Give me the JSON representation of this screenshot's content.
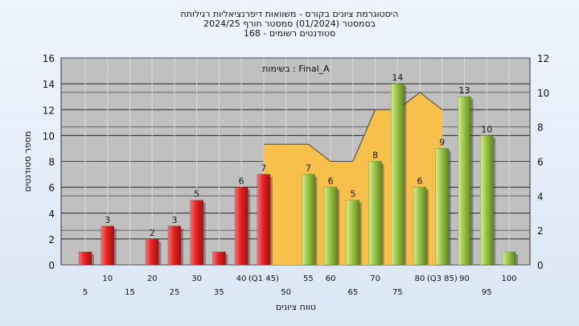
{
  "header": {
    "title_lines": [
      "היסטוגרמת ציונים בקורס - משוואות דיפרנציאליות רגילותח",
      "בסמסטר  (01/2024)  סמסטר חורף 2024/25",
      "סטודנטים רשומים - 168"
    ]
  },
  "chart_data": {
    "type": "bar",
    "title": "היסטוגרמת ציונים בקורס - משוואות דיפרנציאליות רגילותח",
    "xlabel": "טווח ציונים",
    "ylabel": "מספר סטודנטים",
    "annotation": "בשימות : Final_A",
    "ylim": [
      0,
      16
    ],
    "y2lim": [
      0,
      12
    ],
    "y_ticks": [
      0,
      2,
      4,
      6,
      8,
      10,
      12,
      14,
      16
    ],
    "y2_ticks": [
      0,
      2,
      4,
      6,
      8,
      10,
      12
    ],
    "grid": true,
    "x_ticks_upper": [
      "10",
      "20",
      "30",
      "40",
      "(Q1 45)",
      "55",
      "60",
      "70",
      "80",
      "(Q3 85)",
      "90",
      "100"
    ],
    "x_ticks_lower": [
      "5",
      "15",
      "25",
      "35",
      "50",
      "65",
      "75",
      "95"
    ],
    "bars": [
      {
        "x": 5,
        "value": 1,
        "label": "",
        "color": "#d42020"
      },
      {
        "x": 10,
        "value": 3,
        "label": "3",
        "color": "#d42020"
      },
      {
        "x": 20,
        "value": 2,
        "label": "2",
        "color": "#d42020"
      },
      {
        "x": 25,
        "value": 3,
        "label": "3",
        "color": "#d42020"
      },
      {
        "x": 30,
        "value": 5,
        "label": "5",
        "color": "#d42020"
      },
      {
        "x": 35,
        "value": 1,
        "label": "",
        "color": "#d42020"
      },
      {
        "x": 40,
        "value": 6,
        "label": "6",
        "color": "#d42020"
      },
      {
        "x": 45,
        "value": 7,
        "label": "7",
        "color": "#d42020"
      },
      {
        "x": 55,
        "value": 7,
        "label": "7",
        "color": "#86b03a"
      },
      {
        "x": 60,
        "value": 6,
        "label": "6",
        "color": "#86b03a"
      },
      {
        "x": 65,
        "value": 5,
        "label": "5",
        "color": "#86b03a"
      },
      {
        "x": 70,
        "value": 8,
        "label": "8",
        "color": "#86b03a"
      },
      {
        "x": 75,
        "value": 14,
        "label": "14",
        "color": "#86b03a"
      },
      {
        "x": 80,
        "value": 6,
        "label": "6",
        "color": "#86b03a"
      },
      {
        "x": 85,
        "value": 9,
        "label": "9",
        "color": "#86b03a"
      },
      {
        "x": 90,
        "value": 13,
        "label": "13",
        "color": "#86b03a"
      },
      {
        "x": 95,
        "value": 10,
        "label": "10",
        "color": "#86b03a"
      },
      {
        "x": 100,
        "value": 1,
        "label": "",
        "color": "#86b03a"
      }
    ],
    "area_series": {
      "color": "#f7c04a",
      "points": [
        [
          45,
          7
        ],
        [
          55,
          7
        ],
        [
          60,
          6
        ],
        [
          65,
          6
        ],
        [
          70,
          9
        ],
        [
          75,
          9
        ],
        [
          80,
          10
        ],
        [
          85,
          9
        ]
      ]
    },
    "colors": {
      "failing": "#d42020",
      "passing": "#86b03a",
      "area": "#f7c04a",
      "plot_bg": "#c0c0c0"
    }
  }
}
